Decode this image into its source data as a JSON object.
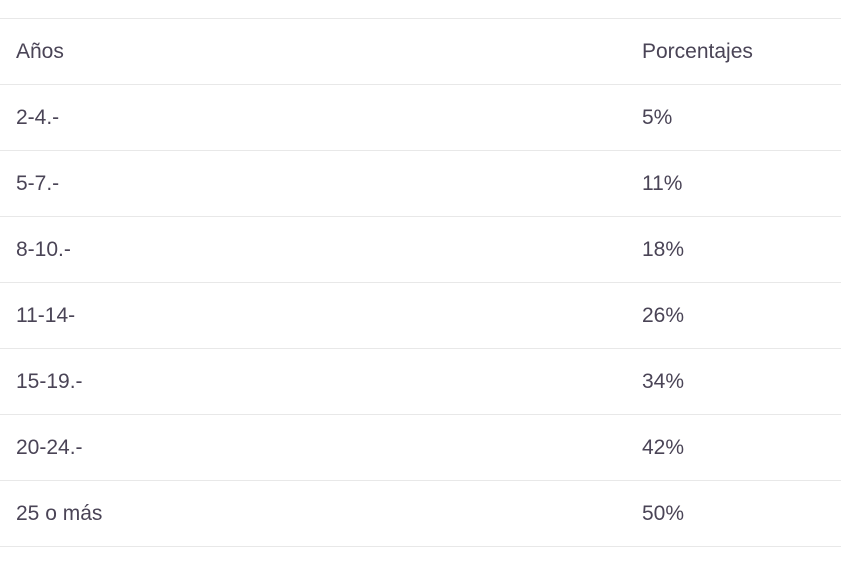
{
  "table": {
    "headers": [
      "Años",
      "Porcentajes"
    ],
    "rows": [
      [
        "2-4.-",
        "5%"
      ],
      [
        "5-7.-",
        "11%"
      ],
      [
        "8-10.-",
        "18%"
      ],
      [
        "11-14-",
        "26%"
      ],
      [
        "15-19.-",
        "34%"
      ],
      [
        "20-24.-",
        "42%"
      ],
      [
        "25 o más",
        "50%"
      ]
    ]
  }
}
